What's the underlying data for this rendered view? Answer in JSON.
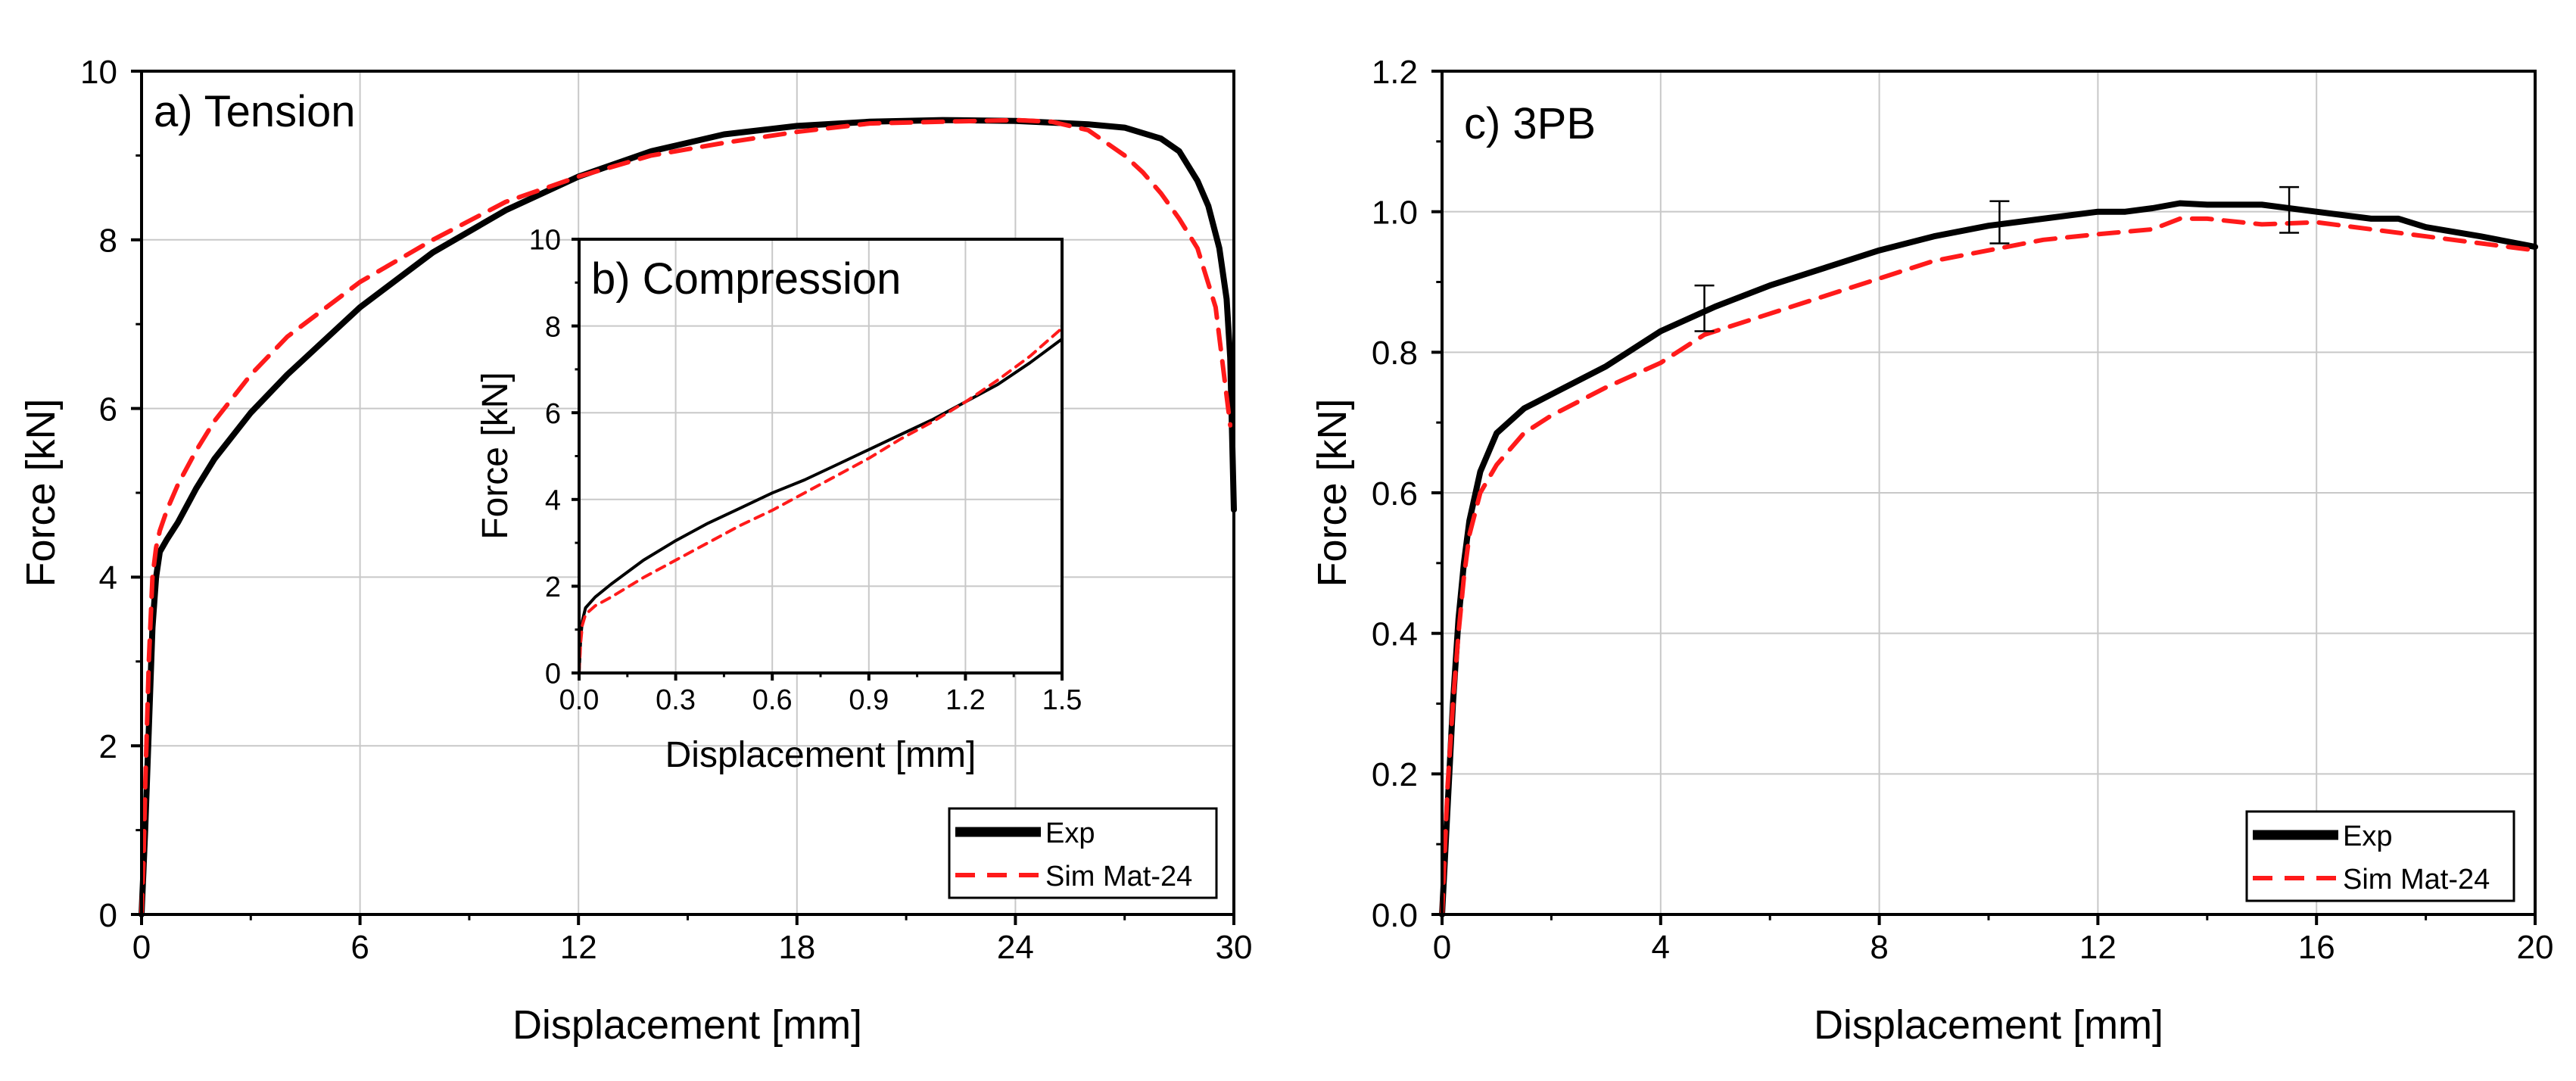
{
  "colors": {
    "exp": "#000000",
    "sim": "#ff1a1a",
    "grid": "#c8c8c8"
  },
  "chart_data": [
    {
      "id": "tension",
      "type": "line",
      "title": "a) Tension",
      "xlabel": "Displacement [mm]",
      "ylabel": "Force [kN]",
      "xlim": [
        0,
        30
      ],
      "ylim": [
        0,
        10
      ],
      "xticks": [
        0,
        6,
        12,
        18,
        24,
        30
      ],
      "yticks": [
        0,
        2,
        4,
        6,
        8,
        10
      ],
      "xtick_labels": [
        "0",
        "6",
        "12",
        "18",
        "24",
        "30"
      ],
      "ytick_labels": [
        "0",
        "2",
        "4",
        "6",
        "8",
        "10"
      ],
      "grid": true,
      "legend": {
        "position": "bottom-right",
        "entries": [
          "Exp",
          "Sim Mat-24"
        ]
      },
      "series": [
        {
          "name": "Exp",
          "style": "solid",
          "x": [
            0,
            0.1,
            0.2,
            0.3,
            0.4,
            0.5,
            0.7,
            1.0,
            1.5,
            2,
            3,
            4,
            6,
            8,
            10,
            12,
            14,
            16,
            18,
            20,
            22,
            24,
            26,
            27,
            28,
            28.5,
            29,
            29.3,
            29.6,
            29.8,
            29.9,
            30
          ],
          "y": [
            0,
            1.0,
            2.2,
            3.4,
            4.0,
            4.3,
            4.45,
            4.65,
            5.05,
            5.4,
            5.95,
            6.4,
            7.2,
            7.85,
            8.35,
            8.75,
            9.05,
            9.25,
            9.35,
            9.4,
            9.42,
            9.41,
            9.37,
            9.33,
            9.2,
            9.05,
            8.7,
            8.4,
            7.9,
            7.3,
            6.6,
            4.8
          ]
        },
        {
          "name": "Sim Mat-24",
          "style": "dashed",
          "x": [
            0,
            0.05,
            0.1,
            0.2,
            0.3,
            0.4,
            0.5,
            0.7,
            1,
            1.5,
            2,
            3,
            4,
            6,
            8,
            10,
            12,
            14,
            16,
            18,
            20,
            22,
            24,
            25,
            26,
            27,
            27.5,
            28,
            28.5,
            29,
            29.5,
            29.9
          ],
          "y": [
            0,
            0.6,
            1.5,
            3.0,
            4.0,
            4.35,
            4.55,
            4.8,
            5.1,
            5.5,
            5.85,
            6.4,
            6.85,
            7.5,
            8.0,
            8.45,
            8.75,
            9.0,
            9.15,
            9.28,
            9.38,
            9.4,
            9.42,
            9.4,
            9.3,
            9.0,
            8.8,
            8.55,
            8.25,
            7.9,
            7.2,
            5.8
          ]
        }
      ]
    },
    {
      "id": "compression",
      "type": "line",
      "title": "b) Compression",
      "xlabel": "Displacement [mm]",
      "ylabel": "Force [kN]",
      "xlim": [
        0,
        1.5
      ],
      "ylim": [
        0,
        10
      ],
      "xticks": [
        0,
        0.3,
        0.6,
        0.9,
        1.2,
        1.5
      ],
      "yticks": [
        0,
        2,
        4,
        6,
        8,
        10
      ],
      "xtick_labels": [
        "0.0",
        "0.3",
        "0.6",
        "0.9",
        "1.2",
        "1.5"
      ],
      "ytick_labels": [
        "0",
        "2",
        "4",
        "6",
        "8",
        "10"
      ],
      "grid": true,
      "series": [
        {
          "name": "Exp",
          "style": "solid",
          "x": [
            0,
            0.005,
            0.01,
            0.02,
            0.05,
            0.1,
            0.2,
            0.3,
            0.4,
            0.5,
            0.6,
            0.7,
            0.8,
            0.9,
            1.0,
            1.1,
            1.2,
            1.3,
            1.4,
            1.5
          ],
          "y": [
            0,
            0.8,
            1.2,
            1.5,
            1.75,
            2.05,
            2.6,
            3.05,
            3.45,
            3.8,
            4.15,
            4.45,
            4.8,
            5.15,
            5.5,
            5.85,
            6.25,
            6.65,
            7.15,
            7.7
          ]
        },
        {
          "name": "Sim Mat-24",
          "style": "dashed",
          "x": [
            0,
            0.005,
            0.01,
            0.02,
            0.05,
            0.1,
            0.2,
            0.3,
            0.4,
            0.5,
            0.6,
            0.7,
            0.8,
            0.9,
            1.0,
            1.1,
            1.2,
            1.3,
            1.4,
            1.5
          ],
          "y": [
            0,
            0.7,
            1.1,
            1.35,
            1.55,
            1.75,
            2.2,
            2.6,
            3.0,
            3.4,
            3.75,
            4.15,
            4.55,
            4.95,
            5.4,
            5.8,
            6.25,
            6.75,
            7.3,
            7.95
          ]
        }
      ]
    },
    {
      "id": "3pb",
      "type": "line",
      "title": "c) 3PB",
      "xlabel": "Displacement [mm]",
      "ylabel": "Force [kN]",
      "xlim": [
        0,
        20
      ],
      "ylim": [
        0,
        1.2
      ],
      "xticks": [
        0,
        4,
        8,
        12,
        16,
        20
      ],
      "yticks": [
        0,
        0.2,
        0.4,
        0.6,
        0.8,
        1.0,
        1.2
      ],
      "xtick_labels": [
        "0",
        "4",
        "8",
        "12",
        "16",
        "20"
      ],
      "ytick_labels": [
        "0.0",
        "0.2",
        "0.4",
        "0.6",
        "0.8",
        "1.0",
        "1.2"
      ],
      "grid": true,
      "legend": {
        "position": "bottom-right",
        "entries": [
          "Exp",
          "Sim Mat-24"
        ]
      },
      "error_bars": [
        {
          "x": 4.8,
          "low": 0.83,
          "high": 0.895
        },
        {
          "x": 10.2,
          "low": 0.955,
          "high": 1.015
        },
        {
          "x": 15.5,
          "low": 0.97,
          "high": 1.035
        }
      ],
      "series": [
        {
          "name": "Exp",
          "style": "solid",
          "x": [
            0,
            0.1,
            0.2,
            0.3,
            0.4,
            0.5,
            0.7,
            1.0,
            1.5,
            2,
            3,
            4,
            5,
            6,
            7,
            8,
            9,
            10,
            11,
            12,
            12.5,
            13,
            13.5,
            14,
            15,
            16,
            17,
            17.5,
            18,
            19,
            20
          ],
          "y": [
            0,
            0.15,
            0.3,
            0.42,
            0.5,
            0.56,
            0.63,
            0.685,
            0.72,
            0.74,
            0.78,
            0.83,
            0.865,
            0.895,
            0.92,
            0.945,
            0.965,
            0.98,
            0.99,
            1.0,
            1.0,
            1.005,
            1.012,
            1.01,
            1.01,
            1.0,
            0.99,
            0.99,
            0.978,
            0.965,
            0.95
          ]
        },
        {
          "name": "Sim Mat-24",
          "style": "dashed",
          "x": [
            0,
            0.1,
            0.2,
            0.3,
            0.4,
            0.5,
            0.7,
            1.0,
            1.5,
            2,
            3,
            4,
            4.8,
            5,
            6,
            7,
            8,
            9,
            10,
            11,
            12,
            13,
            13.5,
            14,
            15,
            16,
            17,
            18,
            19,
            20
          ],
          "y": [
            0,
            0.18,
            0.3,
            0.4,
            0.48,
            0.54,
            0.6,
            0.64,
            0.685,
            0.71,
            0.75,
            0.785,
            0.825,
            0.83,
            0.855,
            0.88,
            0.905,
            0.93,
            0.945,
            0.96,
            0.968,
            0.975,
            0.99,
            0.99,
            0.982,
            0.985,
            0.975,
            0.965,
            0.955,
            0.945
          ]
        }
      ]
    }
  ]
}
